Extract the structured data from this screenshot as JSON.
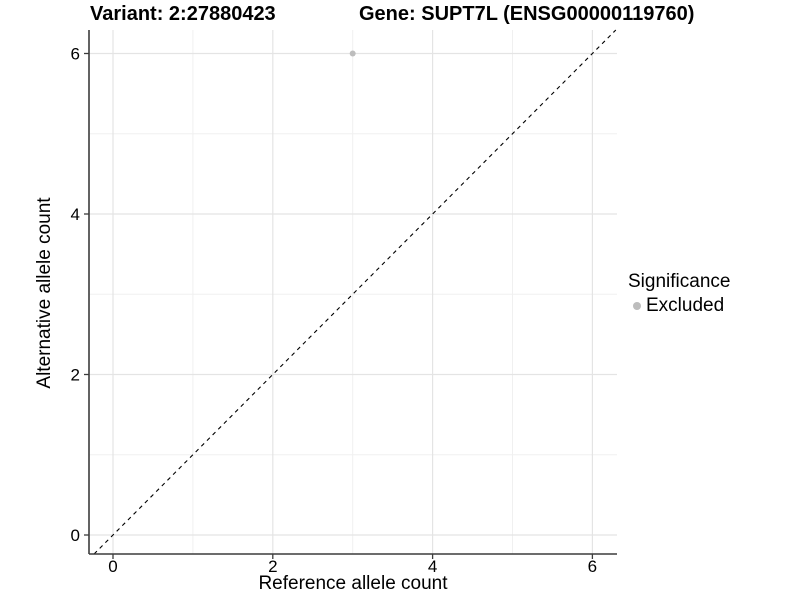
{
  "chart_data": {
    "type": "scatter",
    "title_variant": "Variant: 2:27880423",
    "title_gene": "Gene: SUPT7L (ENSG00000119760)",
    "xlabel": "Reference allele count",
    "ylabel": "Alternative allele count",
    "xlim": [
      -0.3,
      6.3
    ],
    "ylim": [
      -0.3,
      6.3
    ],
    "x_ticks": [
      0,
      2,
      4,
      6
    ],
    "y_ticks": [
      0,
      2,
      4,
      6
    ],
    "x_minor": [
      1,
      3,
      5
    ],
    "y_minor": [
      1,
      3,
      5
    ],
    "grid": "major+minor",
    "identity_line": {
      "equation": "y = x",
      "style": "dashed",
      "color": "#000000"
    },
    "series": [
      {
        "name": "Excluded",
        "color": "#BDBDBD",
        "points": [
          {
            "x": 3,
            "y": 6
          }
        ]
      }
    ],
    "legend": {
      "title": "Significance",
      "position": "right",
      "items": [
        {
          "label": "Excluded",
          "color": "#BDBDBD",
          "marker": "circle"
        }
      ]
    },
    "colors": {
      "background": "#FFFFFF",
      "grid_major": "#E4E4E4",
      "grid_minor": "#F0F0F0",
      "axis_line": "#3C3C3C",
      "text": "#000000"
    }
  }
}
